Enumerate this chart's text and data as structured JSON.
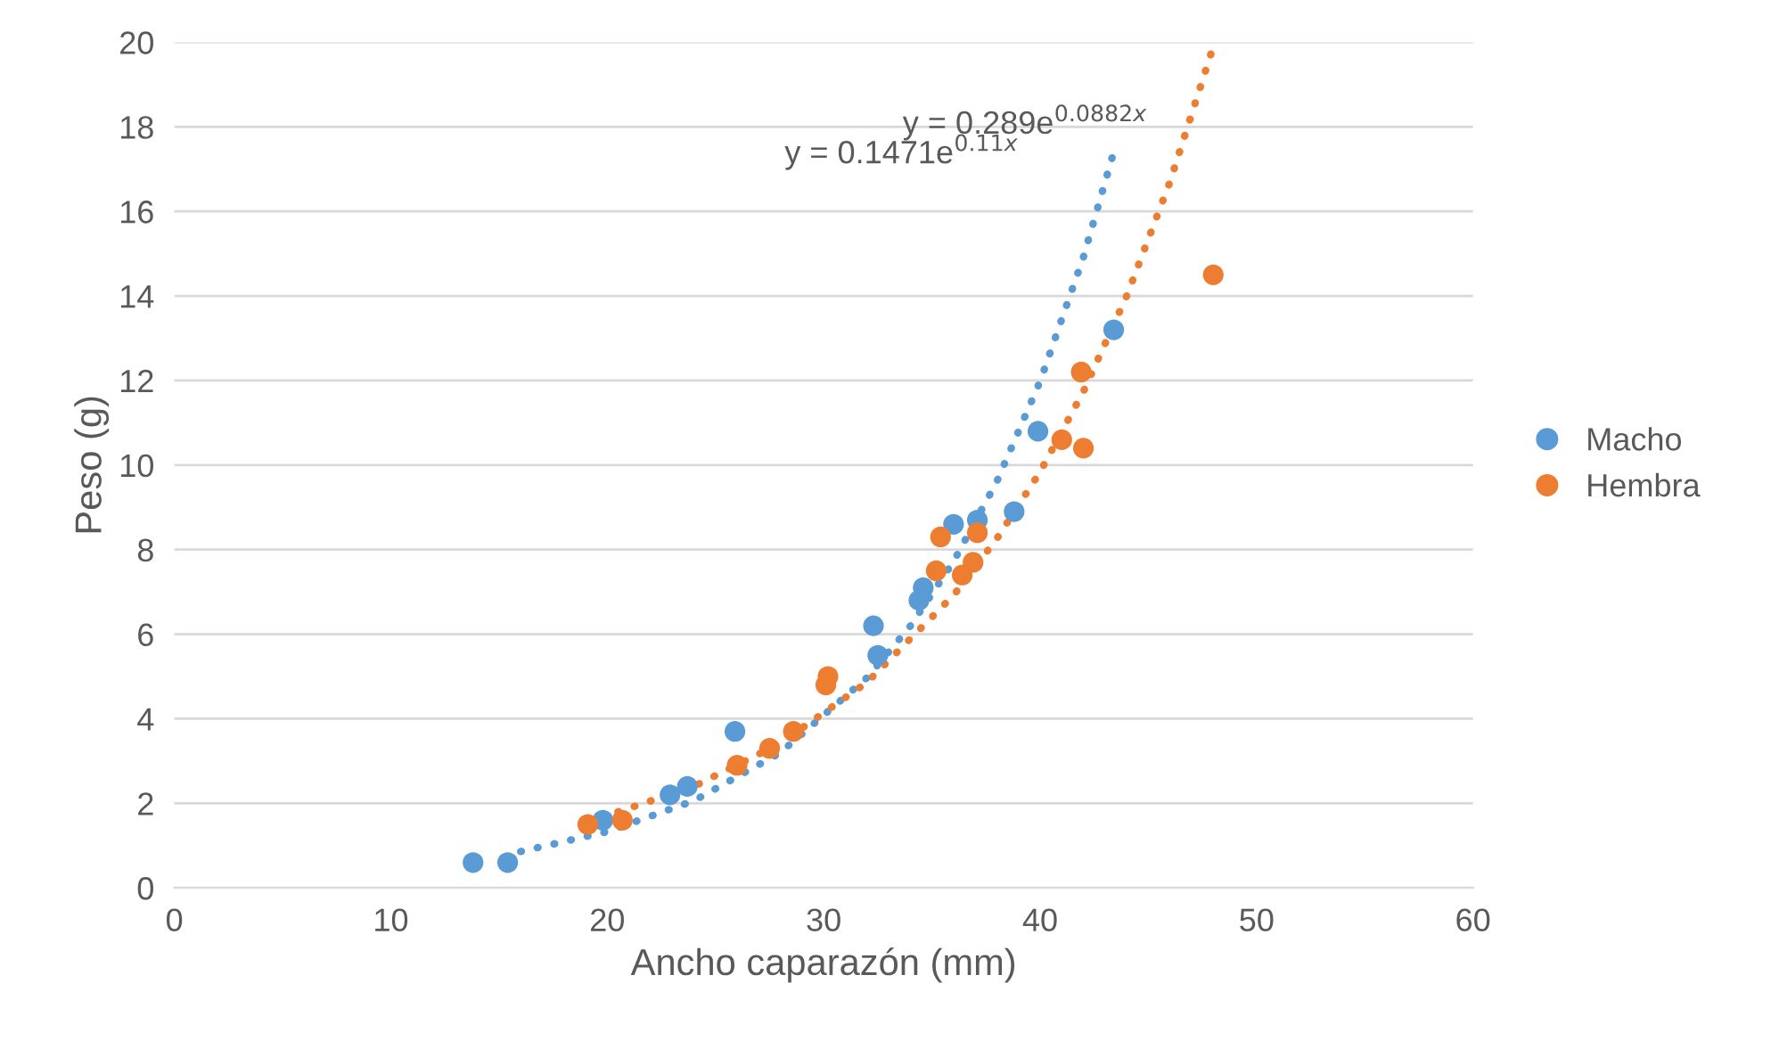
{
  "chart_data": {
    "type": "scatter",
    "xlabel": "Ancho caparazón (mm)",
    "ylabel": "Peso (g)",
    "xlim": [
      0,
      60
    ],
    "ylim": [
      0,
      20
    ],
    "xticks": [
      0,
      10,
      20,
      30,
      40,
      50,
      60
    ],
    "yticks": [
      0,
      2,
      4,
      6,
      8,
      10,
      12,
      14,
      16,
      18,
      20
    ],
    "grid": "y",
    "legend": "right",
    "marker": "circle",
    "annotations": [
      "y = 0.289e$^{0.0882x}$",
      "y = 0.1471e$^{0.11x}$"
    ],
    "series": [
      {
        "name": "Macho",
        "color": "#5b9bd5",
        "x": [
          13.8,
          15.4,
          19.8,
          22.9,
          23.7,
          25.9,
          32.3,
          32.5,
          34.4,
          34.6,
          36.0,
          37.1,
          38.8,
          39.9,
          43.4
        ],
        "values": [
          0.6,
          0.6,
          1.6,
          2.2,
          2.4,
          3.7,
          6.2,
          5.5,
          6.8,
          7.1,
          8.6,
          8.7,
          8.9,
          10.8,
          13.2
        ]
      },
      {
        "name": "Hembra",
        "color": "#ed7d31",
        "x": [
          19.1,
          20.7,
          26.0,
          27.5,
          28.6,
          30.1,
          30.2,
          35.2,
          35.4,
          36.4,
          36.9,
          37.1,
          41.0,
          41.9,
          42.0,
          48.0
        ],
        "values": [
          1.5,
          1.6,
          2.9,
          3.3,
          3.7,
          4.8,
          5.0,
          7.5,
          8.3,
          7.4,
          7.7,
          8.4,
          10.6,
          12.2,
          10.4,
          14.5
        ]
      },
      {
        "type": "line",
        "color": "#5b9bd5",
        "line_style": "dotted",
        "marker": "none",
        "x": [
          16,
          20,
          24,
          28,
          32,
          34,
          36,
          38,
          40,
          42,
          43.4
        ],
        "values": [
          0.86,
          1.33,
          2.06,
          3.2,
          4.97,
          6.19,
          7.72,
          9.61,
          11.98,
          14.92,
          17.4
        ]
      },
      {
        "type": "line",
        "color": "#ed7d31",
        "line_style": "dotted",
        "marker": "none",
        "x": [
          19,
          24,
          28,
          32,
          36,
          38,
          40,
          42,
          44,
          46,
          48
        ],
        "values": [
          1.54,
          2.4,
          3.42,
          4.86,
          6.92,
          8.26,
          9.84,
          11.74,
          14.0,
          16.7,
          19.9
        ]
      }
    ]
  }
}
